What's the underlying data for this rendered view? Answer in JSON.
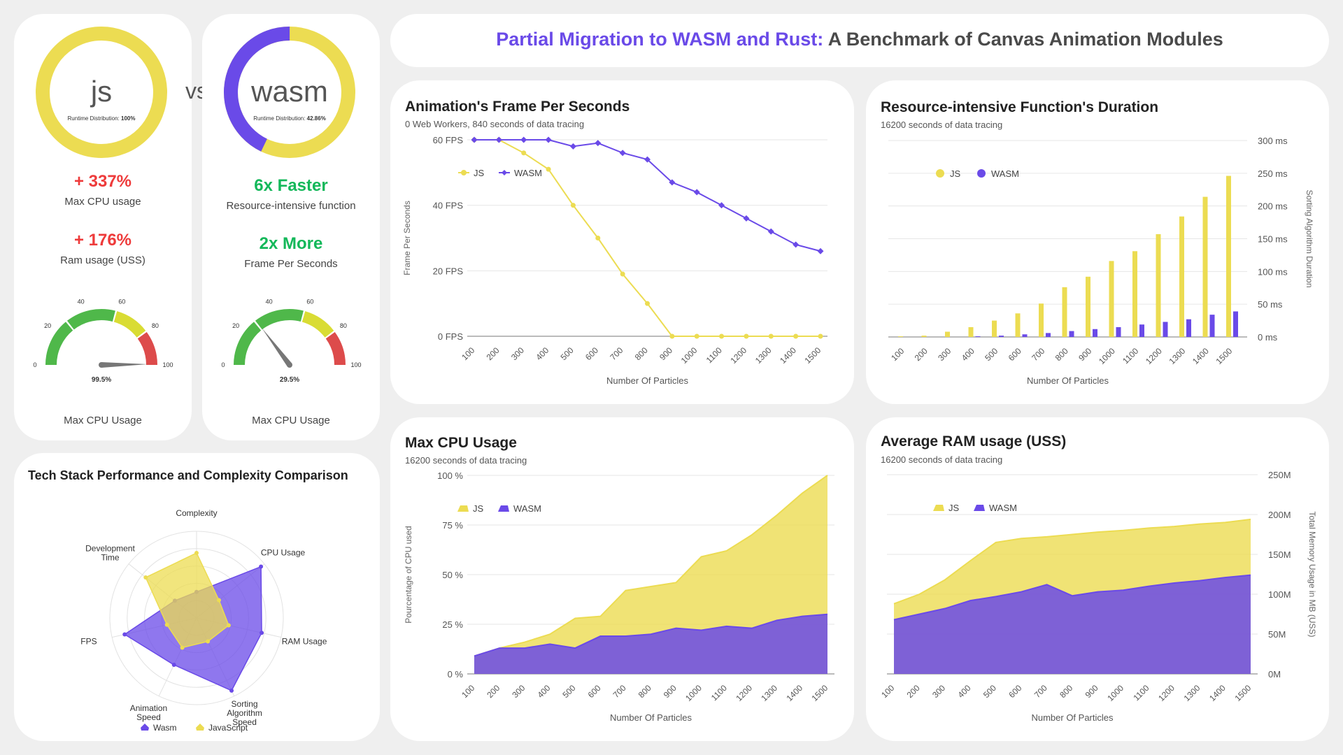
{
  "colors": {
    "js": "#ecdc52",
    "wasm": "#6a4ae8",
    "red": "#ee3b3b",
    "green": "#14b85a",
    "gauge_red": "#dd4b4b",
    "gauge_yellow": "#d9dc34",
    "gauge_green": "#4fb84a"
  },
  "left": {
    "js": {
      "label": "js",
      "caption": "Runtime Distribution: ",
      "value": "100%",
      "fraction": 1.0
    },
    "vs": "vs",
    "wasm": {
      "label": "wasm",
      "caption": "Runtime Distribution: ",
      "value": "42.86%",
      "fraction": 0.4286
    },
    "js_stats": [
      {
        "value": "+ 337%",
        "label": "Max CPU usage"
      },
      {
        "value": "+ 176%",
        "label": "Ram usage  (USS)"
      }
    ],
    "wasm_stats": [
      {
        "value": "6x Faster",
        "label": "Resource-intensive function"
      },
      {
        "value": "2x More",
        "label": "Frame Per Seconds"
      }
    ],
    "gauges": [
      {
        "value": 99.5,
        "value_label": "99.5%",
        "caption": "Max CPU Usage"
      },
      {
        "value": 29.5,
        "value_label": "29.5%",
        "caption": "Max CPU Usage"
      }
    ],
    "gauge_ticks": [
      "0",
      "20",
      "40",
      "60",
      "80",
      "100"
    ]
  },
  "header": {
    "title_highlight": "Partial Migration to WASM and Rust:",
    "title_rest": " A Benchmark of Canvas Animation Modules"
  },
  "radar": {
    "title": "Tech Stack Performance and Complexity Comparison",
    "axes": [
      "Complexity",
      "CPU Usage",
      "RAM Usage",
      "Sorting Algorithm Speed",
      "Animation Speed",
      "FPS",
      "Development Time"
    ],
    "series": [
      {
        "name": "Wasm",
        "values": [
          0.3,
          0.95,
          0.77,
          0.93,
          0.6,
          0.85,
          0.32
        ]
      },
      {
        "name": "JavaScript",
        "values": [
          0.75,
          0.33,
          0.38,
          0.3,
          0.38,
          0.35,
          0.75
        ]
      }
    ],
    "legend": [
      "Wasm",
      "JavaScript"
    ]
  },
  "chart_data": [
    {
      "type": "line",
      "title": "Animation's Frame Per Seconds",
      "subtitle": "0 Web Workers, 840 seconds of data tracing",
      "xlabel": "Number Of Particles",
      "ylabel": "Frame Per Seconds",
      "x": [
        100,
        200,
        300,
        400,
        500,
        600,
        700,
        800,
        900,
        1000,
        1100,
        1200,
        1300,
        1400,
        1500
      ],
      "yticks": [
        "0 FPS",
        "20 FPS",
        "40 FPS",
        "60 FPS"
      ],
      "ylim": [
        0,
        60
      ],
      "series": [
        {
          "name": "JS",
          "values": [
            60,
            60,
            56,
            51,
            40,
            30,
            19,
            10,
            0,
            0,
            0,
            0,
            0,
            0,
            0
          ]
        },
        {
          "name": "WASM",
          "values": [
            60,
            60,
            60,
            60,
            58,
            59,
            56,
            54,
            47,
            44,
            40,
            36,
            32,
            28,
            26
          ]
        }
      ]
    },
    {
      "type": "bar",
      "title": "Resource-intensive Function's Duration",
      "subtitle": "16200 seconds of data tracing",
      "xlabel": "Number Of Particles",
      "ylabel": "Sorting Algorithm Duration",
      "x": [
        100,
        200,
        300,
        400,
        500,
        600,
        700,
        800,
        900,
        1000,
        1100,
        1200,
        1300,
        1400,
        1500
      ],
      "yticks": [
        "0 ms",
        "50 ms",
        "100 ms",
        "150 ms",
        "200 ms",
        "250 ms",
        "300 ms"
      ],
      "ylim": [
        0,
        300
      ],
      "series": [
        {
          "name": "JS",
          "values": [
            1,
            2,
            8,
            15,
            25,
            36,
            51,
            76,
            92,
            116,
            131,
            157,
            184,
            214,
            246
          ]
        },
        {
          "name": "WASM",
          "values": [
            0,
            0,
            0,
            1,
            2,
            4,
            6,
            9,
            12,
            15,
            19,
            23,
            27,
            34,
            39
          ]
        }
      ]
    },
    {
      "type": "area",
      "title": "Max CPU Usage",
      "subtitle": "16200 seconds of data tracing",
      "xlabel": "Number Of Particles",
      "ylabel": "Pourcentage of CPU used",
      "x": [
        100,
        200,
        300,
        400,
        500,
        600,
        700,
        800,
        900,
        1000,
        1100,
        1200,
        1300,
        1400,
        1500
      ],
      "yticks": [
        "0 %",
        "25 %",
        "50 %",
        "75 %",
        "100 %"
      ],
      "ylim": [
        0,
        100
      ],
      "series": [
        {
          "name": "JS",
          "values": [
            9,
            13,
            16,
            20,
            28,
            29,
            42,
            44,
            46,
            59,
            62,
            70,
            80,
            91,
            100
          ]
        },
        {
          "name": "WASM",
          "values": [
            9,
            13,
            13,
            15,
            13,
            19,
            19,
            20,
            23,
            22,
            24,
            23,
            27,
            29,
            30
          ]
        }
      ]
    },
    {
      "type": "area",
      "title": "Average RAM usage (USS)",
      "subtitle": "16200 seconds of data tracing",
      "xlabel": "Number Of Particles",
      "ylabel": "Total Memory Usage in MB (USS)",
      "x": [
        100,
        200,
        300,
        400,
        500,
        600,
        700,
        800,
        900,
        1000,
        1100,
        1200,
        1300,
        1400,
        1500
      ],
      "yticks": [
        "0M",
        "50M",
        "100M",
        "150M",
        "200M",
        "250M"
      ],
      "ylim": [
        0,
        250
      ],
      "series": [
        {
          "name": "JS",
          "values": [
            88,
            100,
            118,
            142,
            165,
            170,
            172,
            175,
            178,
            180,
            183,
            185,
            188,
            190,
            194
          ]
        },
        {
          "name": "WASM",
          "values": [
            68,
            75,
            82,
            92,
            97,
            103,
            112,
            98,
            103,
            105,
            110,
            114,
            117,
            121,
            124
          ]
        }
      ]
    }
  ]
}
